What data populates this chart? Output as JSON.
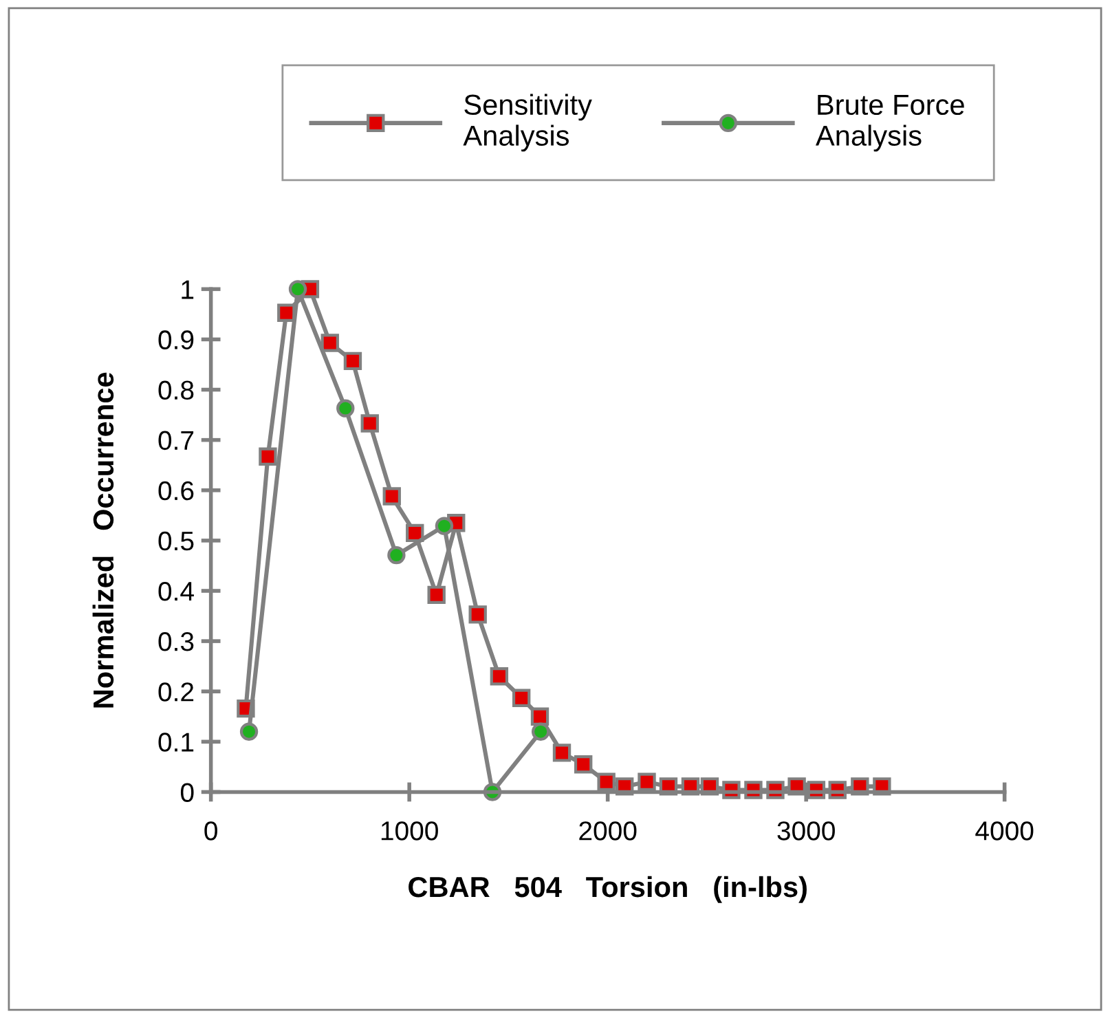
{
  "chart_data": {
    "type": "line",
    "xlabel": "CBAR   504   Torsion   (in-lbs)",
    "ylabel": "Normalized   Occurrence",
    "xlim": [
      0,
      4000
    ],
    "xticks": [
      0,
      1000,
      2000,
      3000,
      4000
    ],
    "ylim": [
      0,
      1
    ],
    "yticks": [
      0,
      0.1,
      0.2,
      0.3,
      0.4,
      0.5,
      0.6,
      0.7,
      0.8,
      0.9,
      1
    ],
    "grid": false,
    "legend": "top",
    "line_style": "solid",
    "series": [
      {
        "name": "Sensitivity\nAnalysis",
        "color": "#e00000",
        "marker": "square",
        "x": [
          176,
          287,
          380,
          500,
          600,
          715,
          801,
          912,
          1028,
          1137,
          1236,
          1345,
          1453,
          1565,
          1658,
          1769,
          1877,
          1993,
          2085,
          2197,
          2306,
          2417,
          2514,
          2623,
          2734,
          2845,
          2953,
          3051,
          3158,
          3271,
          3382
        ],
        "values": [
          0.166,
          0.667,
          0.953,
          1.0,
          0.893,
          0.857,
          0.733,
          0.588,
          0.515,
          0.392,
          0.535,
          0.353,
          0.23,
          0.187,
          0.15,
          0.078,
          0.055,
          0.02,
          0.011,
          0.02,
          0.011,
          0.011,
          0.011,
          0.004,
          0.004,
          0.004,
          0.011,
          0.004,
          0.004,
          0.011,
          0.011
        ]
      },
      {
        "name": "Brute Force\nAnalysis",
        "color": "#20b020",
        "marker": "circle",
        "x": [
          192,
          438,
          678,
          935,
          1176,
          1419,
          1662
        ],
        "values": [
          0.12,
          1.0,
          0.763,
          0.471,
          0.529,
          0.0,
          0.12
        ]
      }
    ]
  }
}
